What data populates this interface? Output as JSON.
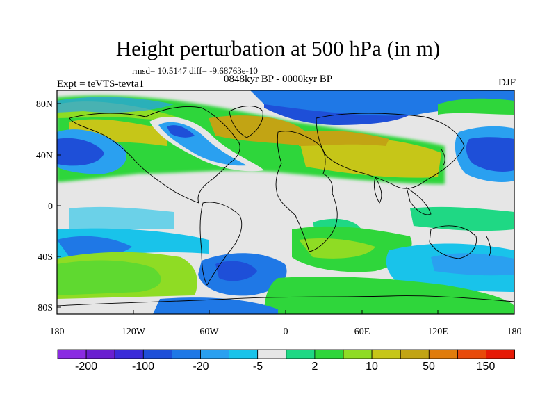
{
  "title": "Height perturbation at 500 hPa (in m)",
  "stats_line": "rmsd= 10.5147 diff= -9.68763e-10",
  "period": "0848kyr BP - 0000kyr BP",
  "experiment": "Expt = teVTS-tevta1",
  "season": "DJF",
  "lat_ticks": [
    "80N",
    "40N",
    "0",
    "40S",
    "80S"
  ],
  "lon_ticks": [
    "180",
    "120W",
    "60W",
    "0",
    "60E",
    "120E",
    "180"
  ],
  "colorbar": {
    "labels": [
      "-200",
      "-100",
      "-20",
      "-5",
      "2",
      "10",
      "50",
      "150"
    ],
    "colors": [
      "#8a2be2",
      "#6a1fd0",
      "#3b2bd8",
      "#1e4fd8",
      "#1f78e6",
      "#2aa0f0",
      "#19c3ea",
      "#e6e6e6",
      "#1fd884",
      "#2fd63b",
      "#8fdc24",
      "#c6c618",
      "#c2a414",
      "#e07c0c",
      "#e84a0a",
      "#e61a06"
    ]
  }
}
